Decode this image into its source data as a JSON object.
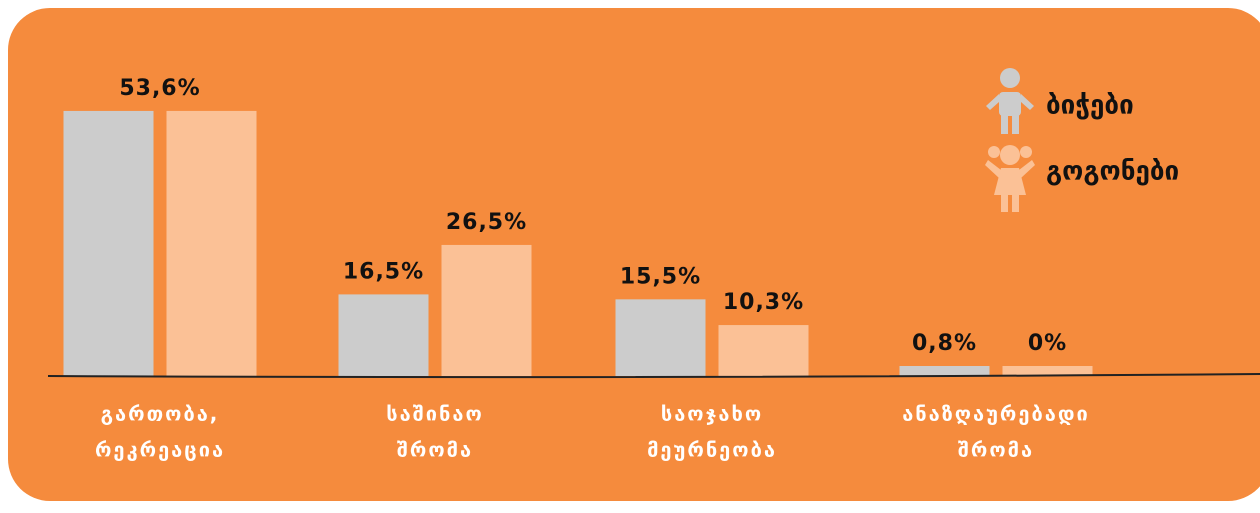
{
  "chart_data": {
    "type": "bar",
    "categories": [
      [
        "გართობა,",
        "რეკრეაცია"
      ],
      [
        "საშინაო",
        "შრომა"
      ],
      [
        "საოჯახო",
        "მეურნეობა"
      ],
      [
        "ანაზღაურებადი",
        "შრომა"
      ]
    ],
    "series": [
      {
        "name": "ბიჭები",
        "color": "#cccccc",
        "values": [
          53.6,
          16.5,
          15.5,
          0.8
        ],
        "value_labels": [
          "53,6%",
          "16,5%",
          "15,5%",
          "0,8%"
        ]
      },
      {
        "name": "გოგონები",
        "color": "#fbc196",
        "values": [
          53.6,
          26.5,
          10.3,
          0
        ],
        "value_labels": [
          null,
          "26,5%",
          "10,3%",
          "0%"
        ]
      }
    ],
    "ylim": [
      0,
      55
    ]
  }
}
